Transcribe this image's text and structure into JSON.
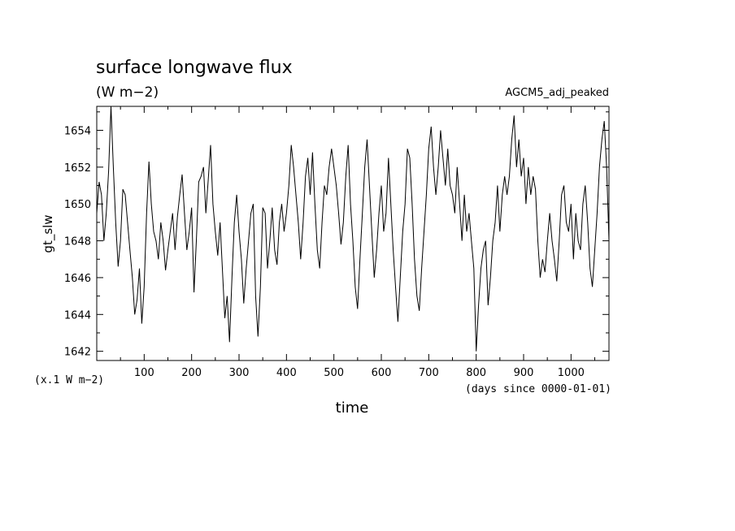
{
  "chart_data": {
    "type": "line",
    "title": "surface longwave flux",
    "units": "(W m−2)",
    "run_label": "AGCM5_adj_peaked",
    "xlabel": "time",
    "x_unit_note": "(days since 0000-01-01)",
    "ylabel": "gt_slw",
    "y_scale_note": "(x.1 W m−2)",
    "xlim": [
      0,
      1080
    ],
    "ylim": [
      1641.5,
      1655.3
    ],
    "x_ticks": [
      100,
      200,
      300,
      400,
      500,
      600,
      700,
      800,
      900,
      1000
    ],
    "y_ticks": [
      1642,
      1644,
      1646,
      1648,
      1650,
      1652,
      1654
    ],
    "grid": false,
    "legend": "none",
    "series": [
      {
        "color": "#000000",
        "x": [
          0,
          5,
          10,
          15,
          20,
          25,
          30,
          35,
          40,
          45,
          50,
          55,
          60,
          65,
          70,
          75,
          80,
          85,
          90,
          95,
          100,
          105,
          110,
          115,
          120,
          125,
          130,
          135,
          140,
          145,
          150,
          155,
          160,
          165,
          170,
          175,
          180,
          185,
          190,
          195,
          200,
          205,
          210,
          215,
          220,
          225,
          230,
          235,
          240,
          245,
          250,
          255,
          260,
          265,
          270,
          275,
          280,
          285,
          290,
          295,
          300,
          305,
          310,
          315,
          320,
          325,
          330,
          335,
          340,
          345,
          350,
          355,
          360,
          365,
          370,
          375,
          380,
          385,
          390,
          395,
          400,
          405,
          410,
          415,
          420,
          425,
          430,
          435,
          440,
          445,
          450,
          455,
          460,
          465,
          470,
          475,
          480,
          485,
          490,
          495,
          500,
          505,
          510,
          515,
          520,
          525,
          530,
          535,
          540,
          545,
          550,
          555,
          560,
          565,
          570,
          575,
          580,
          585,
          590,
          595,
          600,
          605,
          610,
          615,
          620,
          625,
          630,
          635,
          640,
          645,
          650,
          655,
          660,
          665,
          670,
          675,
          680,
          685,
          690,
          695,
          700,
          705,
          710,
          715,
          720,
          725,
          730,
          735,
          740,
          745,
          750,
          755,
          760,
          765,
          770,
          775,
          780,
          785,
          790,
          795,
          800,
          805,
          810,
          815,
          820,
          825,
          830,
          835,
          840,
          845,
          850,
          855,
          860,
          865,
          870,
          875,
          880,
          885,
          890,
          895,
          900,
          905,
          910,
          915,
          920,
          925,
          930,
          935,
          940,
          945,
          950,
          955,
          960,
          965,
          970,
          975,
          980,
          985,
          990,
          995,
          1000,
          1005,
          1010,
          1015,
          1020,
          1025,
          1030,
          1035,
          1040,
          1045,
          1050,
          1055,
          1060,
          1065,
          1070,
          1075,
          1080
        ],
        "y": [
          1649.5,
          1651.2,
          1650.5,
          1648.0,
          1649.5,
          1651.8,
          1655.3,
          1652.0,
          1649.0,
          1646.6,
          1648.0,
          1650.8,
          1650.5,
          1649.0,
          1647.5,
          1646.0,
          1644.0,
          1644.8,
          1646.5,
          1643.5,
          1645.5,
          1649.5,
          1652.3,
          1650.0,
          1648.5,
          1648.0,
          1647.0,
          1649.0,
          1648.0,
          1646.4,
          1647.5,
          1648.5,
          1649.5,
          1647.5,
          1649.3,
          1650.5,
          1651.6,
          1649.5,
          1647.5,
          1648.5,
          1649.8,
          1645.2,
          1648.0,
          1651.2,
          1651.5,
          1652.0,
          1649.5,
          1651.3,
          1653.2,
          1650.0,
          1648.5,
          1647.2,
          1649.0,
          1646.4,
          1643.8,
          1645.0,
          1642.5,
          1646.0,
          1649.0,
          1650.5,
          1648.5,
          1647.0,
          1644.6,
          1646.5,
          1648.0,
          1649.5,
          1650.0,
          1645.0,
          1642.8,
          1645.5,
          1649.8,
          1649.5,
          1646.5,
          1648.0,
          1649.8,
          1647.5,
          1646.7,
          1649.0,
          1650.0,
          1648.5,
          1649.5,
          1651.0,
          1653.2,
          1652.0,
          1650.5,
          1649.0,
          1647.0,
          1649.0,
          1651.5,
          1652.5,
          1650.5,
          1652.8,
          1650.0,
          1647.5,
          1646.5,
          1649.0,
          1651.0,
          1650.5,
          1652.0,
          1653.0,
          1652.0,
          1651.0,
          1649.5,
          1647.8,
          1649.0,
          1651.5,
          1653.2,
          1650.0,
          1648.0,
          1645.5,
          1644.3,
          1647.0,
          1649.5,
          1652.0,
          1653.5,
          1651.0,
          1648.5,
          1646.0,
          1647.5,
          1649.5,
          1651.0,
          1648.5,
          1649.5,
          1652.5,
          1650.0,
          1647.5,
          1645.5,
          1643.6,
          1646.0,
          1648.5,
          1650.0,
          1653.0,
          1652.5,
          1650.0,
          1647.0,
          1645.0,
          1644.2,
          1646.5,
          1648.5,
          1650.5,
          1653.0,
          1654.2,
          1652.0,
          1650.5,
          1652.0,
          1654.0,
          1652.5,
          1651.0,
          1653.0,
          1651.0,
          1650.5,
          1649.5,
          1652.0,
          1650.0,
          1648.0,
          1650.5,
          1648.5,
          1649.5,
          1648.0,
          1646.5,
          1642.0,
          1644.5,
          1646.5,
          1647.5,
          1648.0,
          1644.5,
          1646.0,
          1648.0,
          1649.0,
          1651.0,
          1648.5,
          1650.5,
          1651.5,
          1650.5,
          1651.5,
          1653.5,
          1654.8,
          1652.0,
          1653.5,
          1651.5,
          1652.5,
          1650.0,
          1652.0,
          1650.5,
          1651.5,
          1650.8,
          1648.0,
          1646.0,
          1647.0,
          1646.3,
          1648.0,
          1649.5,
          1648.0,
          1647.0,
          1645.8,
          1648.0,
          1650.5,
          1651.0,
          1649.0,
          1648.5,
          1650.0,
          1647.0,
          1649.5,
          1648.0,
          1647.5,
          1650.0,
          1651.0,
          1649.0,
          1646.5,
          1645.5,
          1647.5,
          1649.5,
          1652.0,
          1653.5,
          1654.5,
          1652.0,
          1648.0
        ]
      }
    ]
  }
}
